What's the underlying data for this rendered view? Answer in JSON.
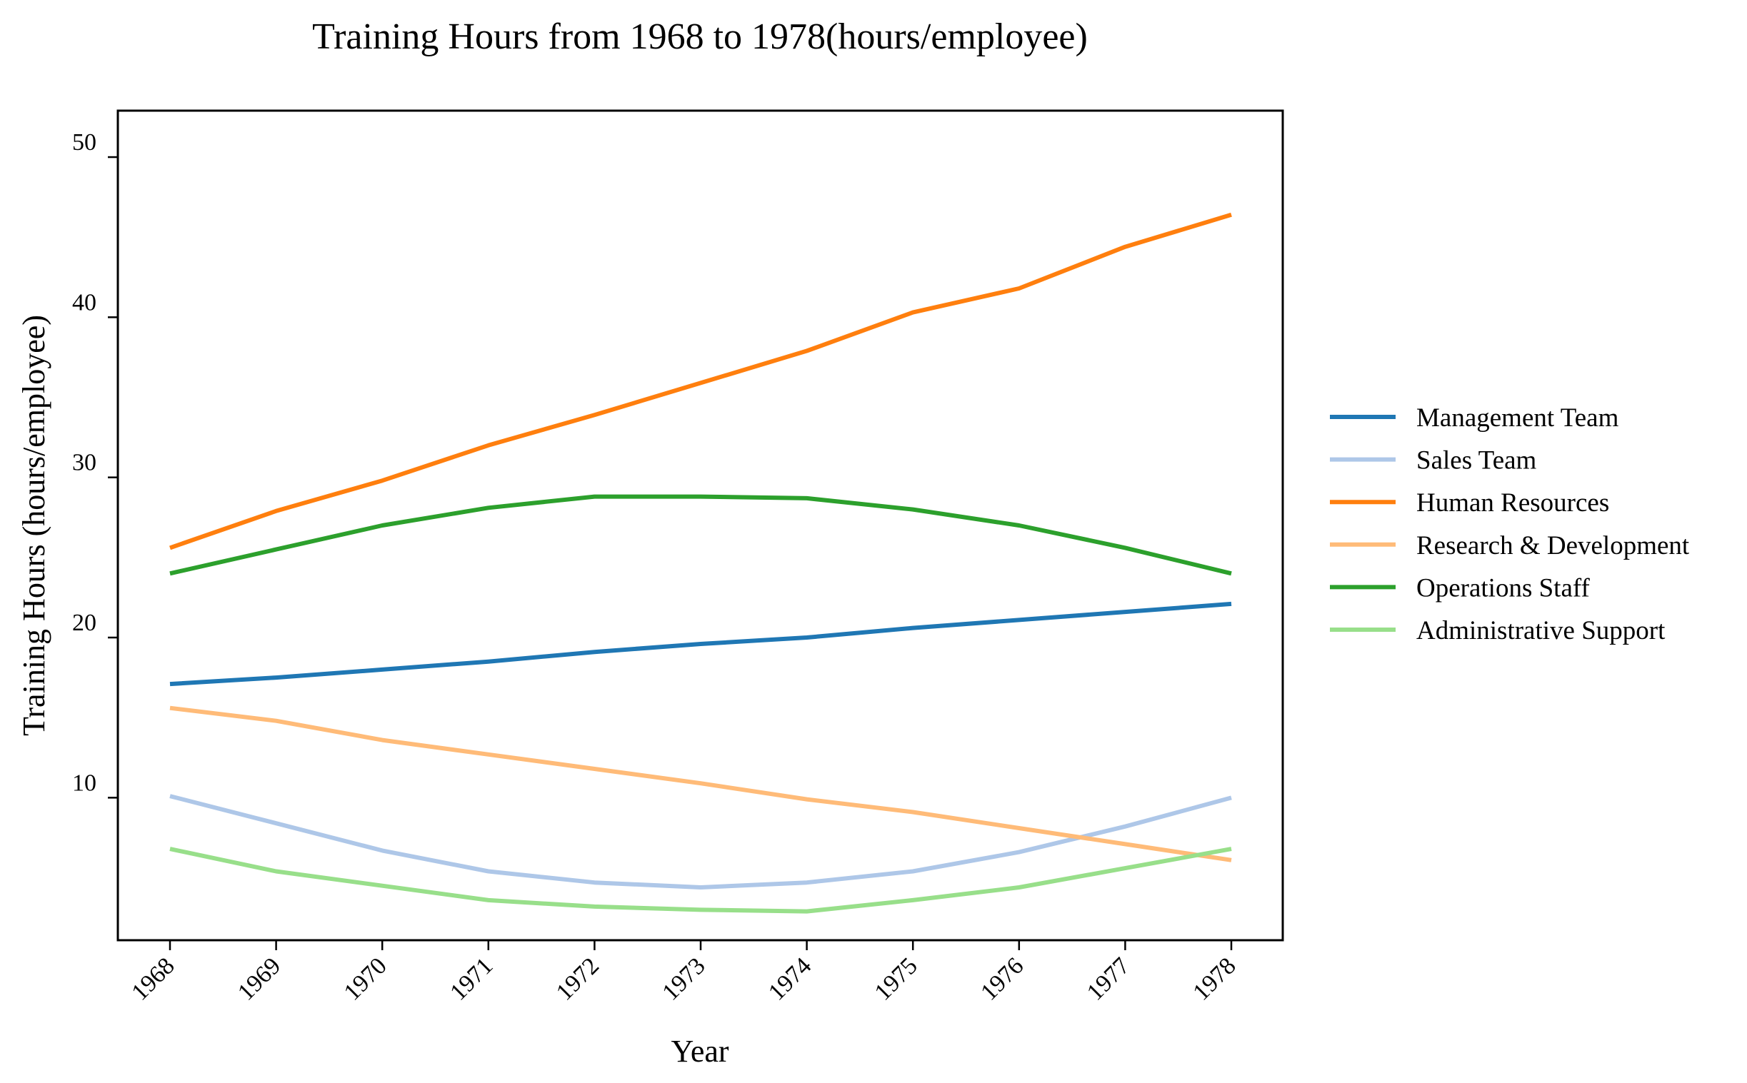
{
  "chart_data": {
    "type": "line",
    "title": "Training Hours from 1968 to 1978(hours/employee)",
    "xlabel": "Year",
    "ylabel": "Training Hours (hours/employee)",
    "x": [
      "1968",
      "1969",
      "1970",
      "1971",
      "1972",
      "1973",
      "1974",
      "1975",
      "1976",
      "1977",
      "1978"
    ],
    "yticks": [
      "10",
      "20",
      "30",
      "40",
      "50"
    ],
    "ylim": [
      1.1,
      52.9
    ],
    "grid": false,
    "legend_position": "right",
    "series": [
      {
        "name": "Management Team",
        "color": "#1f77b4",
        "values": [
          17.1,
          17.5,
          18.0,
          18.5,
          19.1,
          19.6,
          20.0,
          20.6,
          21.1,
          21.6,
          22.1
        ]
      },
      {
        "name": "Sales Team",
        "color": "#aec7e8",
        "values": [
          10.1,
          8.4,
          6.7,
          5.4,
          4.7,
          4.4,
          4.7,
          5.4,
          6.6,
          8.2,
          10.0
        ]
      },
      {
        "name": "Human Resources",
        "color": "#ff7f0e",
        "values": [
          25.6,
          27.9,
          29.8,
          32.0,
          33.9,
          35.9,
          37.9,
          40.3,
          41.8,
          44.4,
          46.4
        ]
      },
      {
        "name": "Research & Development",
        "color": "#ffbb78",
        "values": [
          15.6,
          14.8,
          13.6,
          12.7,
          11.8,
          10.9,
          9.9,
          9.1,
          8.1,
          7.1,
          6.1
        ]
      },
      {
        "name": "Operations Staff",
        "color": "#2ca02c",
        "values": [
          24.0,
          25.5,
          27.0,
          28.1,
          28.8,
          28.8,
          28.7,
          28.0,
          27.0,
          25.6,
          24.0
        ]
      },
      {
        "name": "Administrative Support",
        "color": "#98df8a",
        "values": [
          6.8,
          5.4,
          4.5,
          3.6,
          3.2,
          3.0,
          2.9,
          3.6,
          4.4,
          5.6,
          6.8
        ]
      }
    ]
  }
}
